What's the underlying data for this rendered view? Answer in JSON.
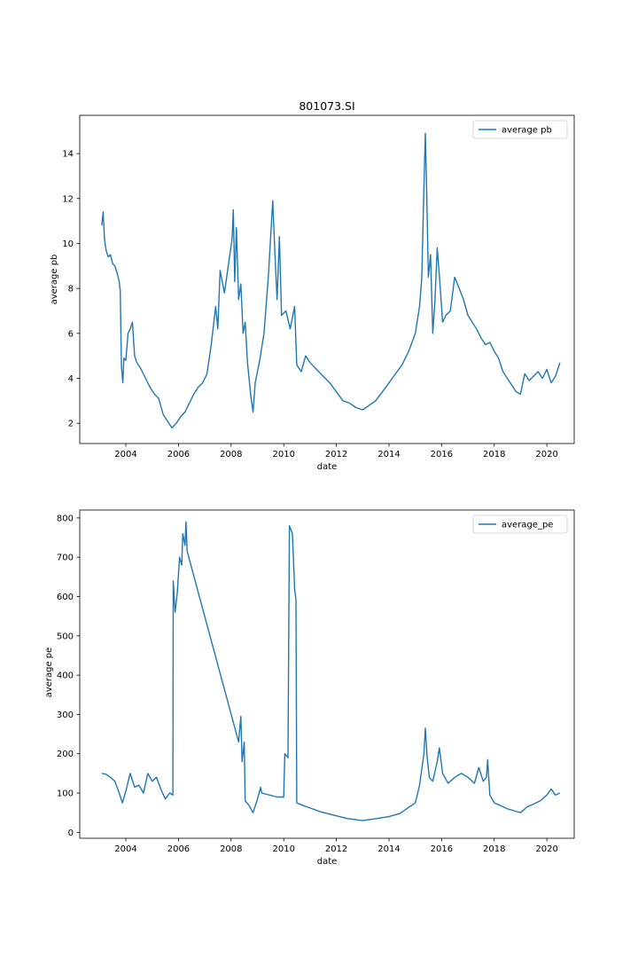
{
  "chart_data": [
    {
      "type": "line",
      "title": "801073.SI",
      "xlabel": "date",
      "ylabel": "average pb",
      "xlim": [
        "2002-04-01",
        "2021-01-15"
      ],
      "ylim": [
        1.1,
        15.7
      ],
      "xticks": [
        "2004",
        "2006",
        "2008",
        "2010",
        "2012",
        "2014",
        "2016",
        "2018",
        "2020"
      ],
      "yticks": [
        2,
        4,
        6,
        8,
        10,
        12,
        14
      ],
      "legend_position": "top-right",
      "grid": false,
      "series": [
        {
          "name": "average pb",
          "color": "#1f77b4",
          "points": [
            [
              "2003-02-01",
              10.8
            ],
            [
              "2003-02-20",
              11.4
            ],
            [
              "2003-03-10",
              10.2
            ],
            [
              "2003-04-01",
              9.7
            ],
            [
              "2003-05-01",
              9.4
            ],
            [
              "2003-06-01",
              9.5
            ],
            [
              "2003-07-01",
              9.1
            ],
            [
              "2003-08-01",
              9.0
            ],
            [
              "2003-09-01",
              8.7
            ],
            [
              "2003-10-01",
              8.3
            ],
            [
              "2003-10-15",
              7.9
            ],
            [
              "2003-11-01",
              4.5
            ],
            [
              "2003-11-20",
              3.8
            ],
            [
              "2003-12-05",
              4.9
            ],
            [
              "2004-01-01",
              4.8
            ],
            [
              "2004-02-01",
              6.0
            ],
            [
              "2004-03-01",
              6.2
            ],
            [
              "2004-04-01",
              6.5
            ],
            [
              "2004-05-01",
              5.0
            ],
            [
              "2004-06-01",
              4.7
            ],
            [
              "2004-08-01",
              4.4
            ],
            [
              "2004-10-01",
              4.0
            ],
            [
              "2004-12-01",
              3.6
            ],
            [
              "2005-02-01",
              3.3
            ],
            [
              "2005-04-01",
              3.1
            ],
            [
              "2005-06-01",
              2.4
            ],
            [
              "2005-08-01",
              2.1
            ],
            [
              "2005-10-01",
              1.8
            ],
            [
              "2005-12-01",
              2.0
            ],
            [
              "2006-02-01",
              2.3
            ],
            [
              "2006-04-01",
              2.5
            ],
            [
              "2006-06-01",
              2.9
            ],
            [
              "2006-08-01",
              3.3
            ],
            [
              "2006-10-01",
              3.6
            ],
            [
              "2006-12-01",
              3.8
            ],
            [
              "2007-02-01",
              4.2
            ],
            [
              "2007-04-01",
              5.5
            ],
            [
              "2007-06-01",
              7.2
            ],
            [
              "2007-07-01",
              6.2
            ],
            [
              "2007-08-01",
              8.8
            ],
            [
              "2007-10-01",
              7.8
            ],
            [
              "2007-12-01",
              9.2
            ],
            [
              "2008-01-15",
              10.2
            ],
            [
              "2008-02-01",
              11.5
            ],
            [
              "2008-02-20",
              8.3
            ],
            [
              "2008-03-15",
              10.7
            ],
            [
              "2008-04-15",
              7.5
            ],
            [
              "2008-05-15",
              8.2
            ],
            [
              "2008-06-15",
              6.0
            ],
            [
              "2008-07-15",
              6.5
            ],
            [
              "2008-08-15",
              4.7
            ],
            [
              "2008-10-01",
              3.2
            ],
            [
              "2008-11-01",
              2.5
            ],
            [
              "2008-12-01",
              3.8
            ],
            [
              "2009-02-01",
              4.8
            ],
            [
              "2009-04-01",
              6.0
            ],
            [
              "2009-06-01",
              8.5
            ],
            [
              "2009-08-01",
              11.9
            ],
            [
              "2009-09-01",
              9.5
            ],
            [
              "2009-10-01",
              7.5
            ],
            [
              "2009-11-01",
              10.3
            ],
            [
              "2009-12-01",
              6.8
            ],
            [
              "2010-02-01",
              7.0
            ],
            [
              "2010-04-01",
              6.2
            ],
            [
              "2010-06-01",
              7.2
            ],
            [
              "2010-07-01",
              4.6
            ],
            [
              "2010-09-01",
              4.3
            ],
            [
              "2010-11-01",
              5.0
            ],
            [
              "2011-01-01",
              4.7
            ],
            [
              "2011-04-01",
              4.4
            ],
            [
              "2011-07-01",
              4.1
            ],
            [
              "2011-10-01",
              3.8
            ],
            [
              "2012-01-01",
              3.4
            ],
            [
              "2012-04-01",
              3.0
            ],
            [
              "2012-07-01",
              2.9
            ],
            [
              "2012-10-01",
              2.7
            ],
            [
              "2013-01-01",
              2.6
            ],
            [
              "2013-04-01",
              2.8
            ],
            [
              "2013-07-01",
              3.0
            ],
            [
              "2013-10-01",
              3.4
            ],
            [
              "2014-01-01",
              3.8
            ],
            [
              "2014-04-01",
              4.2
            ],
            [
              "2014-07-01",
              4.6
            ],
            [
              "2014-10-01",
              5.2
            ],
            [
              "2015-01-01",
              6.0
            ],
            [
              "2015-03-01",
              7.2
            ],
            [
              "2015-04-01",
              8.5
            ],
            [
              "2015-05-01",
              12.5
            ],
            [
              "2015-05-20",
              14.9
            ],
            [
              "2015-06-10",
              12.0
            ],
            [
              "2015-07-01",
              8.5
            ],
            [
              "2015-08-01",
              9.5
            ],
            [
              "2015-09-01",
              6.0
            ],
            [
              "2015-10-01",
              7.5
            ],
            [
              "2015-11-01",
              9.8
            ],
            [
              "2015-12-01",
              8.6
            ],
            [
              "2016-01-15",
              6.5
            ],
            [
              "2016-03-01",
              6.8
            ],
            [
              "2016-05-01",
              7.0
            ],
            [
              "2016-07-01",
              8.5
            ],
            [
              "2016-09-01",
              8.0
            ],
            [
              "2016-11-01",
              7.5
            ],
            [
              "2017-01-01",
              6.8
            ],
            [
              "2017-03-01",
              6.5
            ],
            [
              "2017-05-01",
              6.2
            ],
            [
              "2017-07-01",
              5.8
            ],
            [
              "2017-09-01",
              5.5
            ],
            [
              "2017-11-01",
              5.6
            ],
            [
              "2018-01-01",
              5.2
            ],
            [
              "2018-03-01",
              4.9
            ],
            [
              "2018-05-01",
              4.3
            ],
            [
              "2018-07-01",
              4.0
            ],
            [
              "2018-09-01",
              3.7
            ],
            [
              "2018-11-01",
              3.4
            ],
            [
              "2019-01-01",
              3.3
            ],
            [
              "2019-03-01",
              4.2
            ],
            [
              "2019-05-01",
              3.9
            ],
            [
              "2019-07-01",
              4.1
            ],
            [
              "2019-09-01",
              4.3
            ],
            [
              "2019-11-01",
              4.0
            ],
            [
              "2020-01-01",
              4.4
            ],
            [
              "2020-03-01",
              3.8
            ],
            [
              "2020-05-01",
              4.1
            ],
            [
              "2020-07-01",
              4.7
            ]
          ]
        }
      ]
    },
    {
      "type": "line",
      "title": "",
      "xlabel": "date",
      "ylabel": "average pe",
      "xlim": [
        "2002-04-01",
        "2021-01-15"
      ],
      "ylim": [
        -15,
        820
      ],
      "xticks": [
        "2004",
        "2006",
        "2008",
        "2010",
        "2012",
        "2014",
        "2016",
        "2018",
        "2020"
      ],
      "yticks": [
        0,
        100,
        200,
        300,
        400,
        500,
        600,
        700,
        800
      ],
      "legend_position": "top-right",
      "grid": false,
      "series": [
        {
          "name": "average_pe",
          "color": "#1f77b4",
          "points": [
            [
              "2003-02-01",
              150
            ],
            [
              "2003-04-01",
              148
            ],
            [
              "2003-06-01",
              140
            ],
            [
              "2003-08-01",
              130
            ],
            [
              "2003-10-01",
              100
            ],
            [
              "2003-11-15",
              75
            ],
            [
              "2004-01-01",
              105
            ],
            [
              "2004-03-01",
              150
            ],
            [
              "2004-05-01",
              115
            ],
            [
              "2004-07-01",
              120
            ],
            [
              "2004-09-01",
              100
            ],
            [
              "2004-11-01",
              150
            ],
            [
              "2005-01-01",
              130
            ],
            [
              "2005-03-01",
              140
            ],
            [
              "2005-05-01",
              110
            ],
            [
              "2005-07-01",
              85
            ],
            [
              "2005-09-01",
              100
            ],
            [
              "2005-10-15",
              95
            ],
            [
              "2005-10-20",
              640
            ],
            [
              "2005-11-15",
              560
            ],
            [
              "2005-12-15",
              610
            ],
            [
              "2006-01-15",
              700
            ],
            [
              "2006-02-15",
              680
            ],
            [
              "2006-03-01",
              760
            ],
            [
              "2006-04-01",
              730
            ],
            [
              "2006-04-15",
              790
            ],
            [
              "2006-05-01",
              715
            ],
            [
              "2008-04-15",
              230
            ],
            [
              "2008-05-15",
              295
            ],
            [
              "2008-06-01",
              180
            ],
            [
              "2008-07-01",
              230
            ],
            [
              "2008-07-15",
              80
            ],
            [
              "2008-09-01",
              70
            ],
            [
              "2008-11-01",
              50
            ],
            [
              "2009-01-01",
              85
            ],
            [
              "2009-02-15",
              115
            ],
            [
              "2009-03-01",
              100
            ],
            [
              "2009-10-01",
              90
            ],
            [
              "2010-01-01",
              90
            ],
            [
              "2010-01-15",
              200
            ],
            [
              "2010-03-01",
              190
            ],
            [
              "2010-03-20",
              780
            ],
            [
              "2010-05-01",
              760
            ],
            [
              "2010-06-01",
              620
            ],
            [
              "2010-06-20",
              590
            ],
            [
              "2010-07-01",
              75
            ],
            [
              "2010-09-01",
              70
            ],
            [
              "2011-01-01",
              62
            ],
            [
              "2011-06-01",
              52
            ],
            [
              "2012-01-01",
              42
            ],
            [
              "2012-06-01",
              35
            ],
            [
              "2013-01-01",
              30
            ],
            [
              "2013-06-01",
              34
            ],
            [
              "2014-01-01",
              40
            ],
            [
              "2014-06-01",
              48
            ],
            [
              "2015-01-01",
              75
            ],
            [
              "2015-03-01",
              120
            ],
            [
              "2015-05-01",
              200
            ],
            [
              "2015-05-20",
              265
            ],
            [
              "2015-06-15",
              190
            ],
            [
              "2015-07-15",
              140
            ],
            [
              "2015-09-01",
              130
            ],
            [
              "2015-11-01",
              180
            ],
            [
              "2015-12-01",
              215
            ],
            [
              "2016-01-15",
              150
            ],
            [
              "2016-04-01",
              125
            ],
            [
              "2016-07-01",
              140
            ],
            [
              "2016-10-01",
              150
            ],
            [
              "2017-01-01",
              140
            ],
            [
              "2017-04-01",
              125
            ],
            [
              "2017-06-01",
              165
            ],
            [
              "2017-08-01",
              130
            ],
            [
              "2017-09-15",
              140
            ],
            [
              "2017-10-01",
              185
            ],
            [
              "2017-11-01",
              95
            ],
            [
              "2018-01-01",
              75
            ],
            [
              "2018-04-01",
              68
            ],
            [
              "2018-07-01",
              60
            ],
            [
              "2018-10-01",
              55
            ],
            [
              "2019-01-01",
              50
            ],
            [
              "2019-04-01",
              65
            ],
            [
              "2019-07-01",
              72
            ],
            [
              "2019-10-01",
              80
            ],
            [
              "2020-01-01",
              95
            ],
            [
              "2020-03-01",
              110
            ],
            [
              "2020-05-01",
              95
            ],
            [
              "2020-07-01",
              100
            ]
          ]
        }
      ]
    }
  ]
}
